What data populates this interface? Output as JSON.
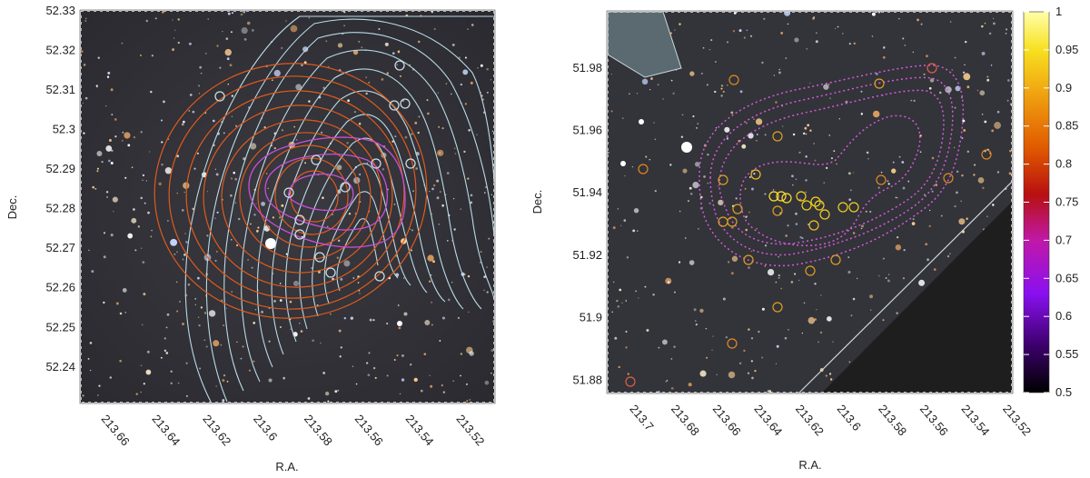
{
  "panels": [
    {
      "id": "left",
      "xlabel": "R.A.",
      "ylabel": "Dec.",
      "x_ticks": [
        "213.66",
        "213.64",
        "213.62",
        "213.6",
        "213.58",
        "213.56",
        "213.54",
        "213.52"
      ],
      "y_ticks": [
        "52.33",
        "52.32",
        "52.31",
        "52.3",
        "52.29",
        "52.28",
        "52.27",
        "52.26",
        "52.25",
        "52.24"
      ],
      "xlim": [
        213.67,
        213.507
      ],
      "ylim": [
        52.231,
        52.33
      ],
      "contours": [
        {
          "color": "#b9dbe6"
        },
        {
          "color": "#e05a1c"
        },
        {
          "color": "#c84fd8"
        }
      ]
    },
    {
      "id": "right",
      "xlabel": "R.A.",
      "ylabel": "Dec.",
      "x_ticks": [
        "213.7",
        "213.68",
        "213.66",
        "213.64",
        "213.62",
        "213.6",
        "213.58",
        "213.56",
        "213.54",
        "213.52"
      ],
      "y_ticks": [
        "51.98",
        "51.96",
        "51.94",
        "51.92",
        "51.9",
        "51.88"
      ],
      "xlim": [
        213.713,
        213.518
      ],
      "ylim": [
        51.876,
        51.998
      ],
      "contours": [
        {
          "color": "#d35bd8",
          "style": "dotted"
        }
      ]
    }
  ],
  "colorbar": {
    "ticks": [
      "1",
      "0.95",
      "0.9",
      "0.85",
      "0.8",
      "0.75",
      "0.7",
      "0.65",
      "0.6",
      "0.55",
      "0.5"
    ],
    "range": [
      0.5,
      1
    ],
    "colors": [
      "#000000",
      "#3a0068",
      "#8a10f0",
      "#c018a8",
      "#b81010",
      "#e05800",
      "#f0a010",
      "#f8e020",
      "#ffffa8"
    ]
  }
}
